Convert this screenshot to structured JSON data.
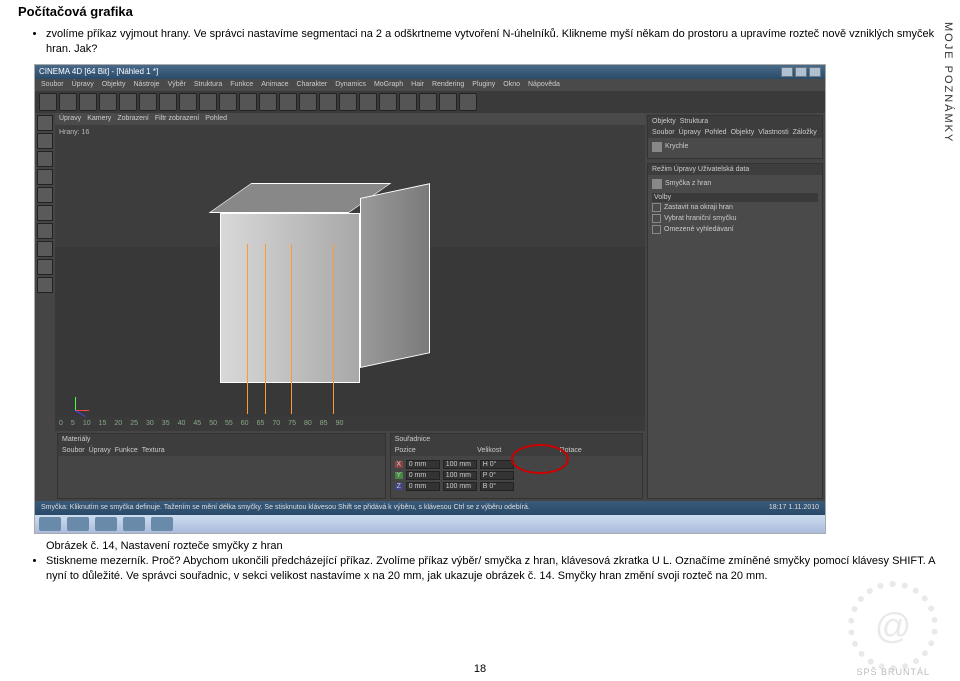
{
  "doc": {
    "title": "Počítačová grafika",
    "para1": "zvolíme příkaz vyjmout hrany. Ve správci nastavíme segmentaci na 2 a odškrtneme vytvoření N-úhelníků. Klikneme myší někam do prostoru a upravíme rozteč nově vzniklých smyček hran. Jak?",
    "caption": "Obrázek č. 14, Nastavení rozteče smyčky z hran",
    "bullet2": "Stiskneme mezerník. Proč? Abychom ukončili předcházející příkaz. Zvolíme příkaz výběr/ smyčka z hran, klávesová zkratka U L. Označíme zmíněné smyčky pomocí klávesy SHIFT. A nyní to důležité. Ve správci souřadnic, v sekci velikost nastavíme x na 20 mm, jak ukazuje obrázek č. 14. Smyčky hran změní svoji rozteč na 20 mm.",
    "pagenum": "18",
    "sidebar": "MOJE POZNÁMKY"
  },
  "app": {
    "title": "CINEMA 4D [64 Bit] - [Náhled 1 *]",
    "menus": [
      "Soubor",
      "Úpravy",
      "Objekty",
      "Nástroje",
      "Výběr",
      "Struktura",
      "Funkce",
      "Animace",
      "Charakter",
      "Dynamics",
      "MoGraph",
      "Hair",
      "Rendering",
      "Pluginy",
      "Okno",
      "Nápověda"
    ],
    "vp_menus": [
      "Úpravy",
      "Kamery",
      "Zobrazení",
      "Filtr zobrazení",
      "Pohled"
    ],
    "right_top_tabs": [
      "Objekty",
      "Struktura"
    ],
    "right_top_tabs2": [
      "Soubor",
      "Úpravy",
      "Pohled",
      "Objekty",
      "Vlastnosti",
      "Záložky"
    ],
    "obj_name": "Krychle",
    "right_mid_title": "Režim  Úpravy  Uživatelská data",
    "right_mid_item": "Smyčka z hran",
    "right_mid_sect": "Volby",
    "opts": [
      "Zastavit na okraji hran",
      "Vybrat hraniční smyčku",
      "Omezené vyhledávaní"
    ],
    "bot_left_tabs": [
      "Materiály"
    ],
    "bot_left_menu": [
      "Soubor",
      "Úpravy",
      "Funkce",
      "Textura"
    ],
    "bot_right_tabs": [
      "Souřadnice"
    ],
    "bot_right_cols": [
      "Pozice",
      "Velikost",
      "Rotace"
    ],
    "coords": {
      "x": [
        "0 mm",
        "100 mm",
        "H  0°"
      ],
      "y": [
        "0 mm",
        "100 mm",
        "P  0°"
      ],
      "z": [
        "0 mm",
        "100 mm",
        "B  0°"
      ]
    },
    "status_left": "Smyčka: Kliknutím se smyčka definuje. Tažením se mění délka smyčky. Se stisknutou klávesou Shift se přidává k výběru, s klávesou Ctrl se z výběru odebírá.",
    "status_right": "18:17",
    "status_date": "1.11.2010",
    "timeline_frames": [
      "0",
      "5",
      "10",
      "15",
      "20",
      "25",
      "30",
      "35",
      "40",
      "45",
      "50",
      "55",
      "60",
      "65",
      "70",
      "75",
      "80",
      "85",
      "90"
    ],
    "hrany": "Hrany: 16"
  },
  "watermark": "SPŠ BRUNTÁL"
}
